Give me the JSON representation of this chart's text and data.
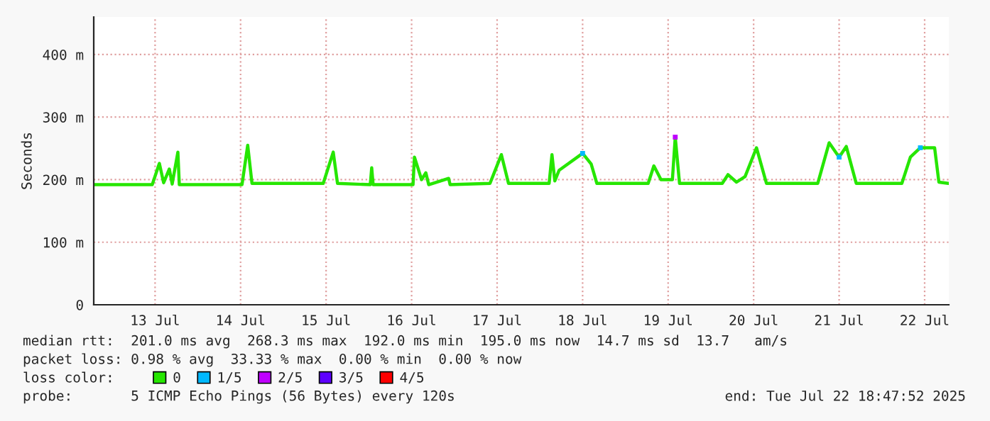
{
  "chart_data": {
    "type": "line",
    "ylabel": "Seconds",
    "xlim": [
      "2025-07-12T18:47",
      "2025-07-22T18:47"
    ],
    "xticks": [
      {
        "value": "2025-07-13T12:00",
        "label": "13 Jul"
      },
      {
        "value": "2025-07-14T12:00",
        "label": "14 Jul"
      },
      {
        "value": "2025-07-15T12:00",
        "label": "15 Jul"
      },
      {
        "value": "2025-07-16T12:00",
        "label": "16 Jul"
      },
      {
        "value": "2025-07-17T12:00",
        "label": "17 Jul"
      },
      {
        "value": "2025-07-18T12:00",
        "label": "18 Jul"
      },
      {
        "value": "2025-07-19T12:00",
        "label": "19 Jul"
      },
      {
        "value": "2025-07-20T12:00",
        "label": "20 Jul"
      },
      {
        "value": "2025-07-21T12:00",
        "label": "21 Jul"
      },
      {
        "value": "2025-07-22T12:00",
        "label": "22 Jul"
      }
    ],
    "ylim": [
      0,
      460
    ],
    "yticks": [
      0,
      {
        "value": 100,
        "label": "100 m"
      },
      {
        "value": 200,
        "label": "200 m"
      },
      {
        "value": 300,
        "label": "300 m"
      },
      {
        "value": 400,
        "label": "400 m"
      }
    ],
    "grid": true,
    "legend": "bottom",
    "legend_title": "loss color:",
    "series": [
      {
        "name": "0",
        "color": "#26e600",
        "x": [
          "2025-07-12T18:48",
          "2025-07-13T11:12",
          "2025-07-13T13:12",
          "2025-07-13T14:24",
          "2025-07-13T16:00",
          "2025-07-13T16:48",
          "2025-07-13T18:24",
          "2025-07-13T18:48",
          "2025-07-14T12:24",
          "2025-07-14T14:00",
          "2025-07-14T15:12",
          "2025-07-15T11:12",
          "2025-07-15T14:00",
          "2025-07-15T15:12",
          "2025-07-16T00:24",
          "2025-07-16T00:48",
          "2025-07-16T01:12",
          "2025-07-16T12:24",
          "2025-07-16T12:48",
          "2025-07-16T14:48",
          "2025-07-16T16:00",
          "2025-07-16T16:48",
          "2025-07-16T22:24",
          "2025-07-16T22:48",
          "2025-07-17T10:00",
          "2025-07-17T13:12",
          "2025-07-17T15:12",
          "2025-07-18T02:36",
          "2025-07-18T03:24",
          "2025-07-18T04:12",
          "2025-07-18T05:24",
          "2025-07-18T12:00",
          "2025-07-18T14:24",
          "2025-07-18T16:00",
          "2025-07-19T06:24",
          "2025-07-19T08:00",
          "2025-07-19T10:00",
          "2025-07-19T13:12",
          "2025-07-19T14:00",
          "2025-07-19T15:12",
          "2025-07-20T03:12",
          "2025-07-20T04:48",
          "2025-07-20T07:12",
          "2025-07-20T09:36",
          "2025-07-20T12:48",
          "2025-07-20T15:36",
          "2025-07-21T06:00",
          "2025-07-21T09:12",
          "2025-07-21T12:00",
          "2025-07-21T14:00",
          "2025-07-21T16:48",
          "2025-07-22T05:36",
          "2025-07-22T08:00",
          "2025-07-22T10:48",
          "2025-07-22T14:48",
          "2025-07-22T16:00",
          "2025-07-22T18:40"
        ],
        "values": [
          192,
          192,
          226,
          195,
          217,
          193,
          244,
          192,
          192,
          255,
          194,
          194,
          244,
          194,
          192,
          219,
          192,
          192,
          236,
          200,
          211,
          192,
          202,
          192,
          194,
          240,
          194,
          194,
          240,
          198,
          215,
          242,
          225,
          194,
          194,
          222,
          200,
          200,
          268,
          194,
          194,
          208,
          196,
          205,
          251,
          194,
          194,
          259,
          236,
          253,
          194,
          194,
          236,
          251,
          251,
          196,
          194
        ]
      },
      {
        "name": "1/5",
        "color": "#00b8ff",
        "type": "scatter",
        "x": [
          "2025-07-18T12:00",
          "2025-07-21T12:00",
          "2025-07-22T10:48"
        ],
        "values": [
          242,
          236,
          251
        ]
      },
      {
        "name": "2/5",
        "color": "#bf00ff",
        "type": "scatter",
        "x": [
          "2025-07-19T14:00"
        ],
        "values": [
          268
        ]
      },
      {
        "name": "3/5",
        "color": "#5e00ff",
        "type": "scatter"
      },
      {
        "name": "4/5",
        "color": "#ff0000",
        "type": "scatter"
      }
    ],
    "annotations": [
      "median rtt:  201.0 ms avg  268.3 ms max  192.0 ms min  195.0 ms now  14.7 ms sd  13.7   am/s",
      "packet loss: 0.98 % avg  33.33 % max  0.00 % min  0.00 % now",
      "probe:       5 ICMP Echo Pings (56 Bytes) every 120s",
      "end: Tue Jul 22 18:47:52 2025"
    ]
  }
}
